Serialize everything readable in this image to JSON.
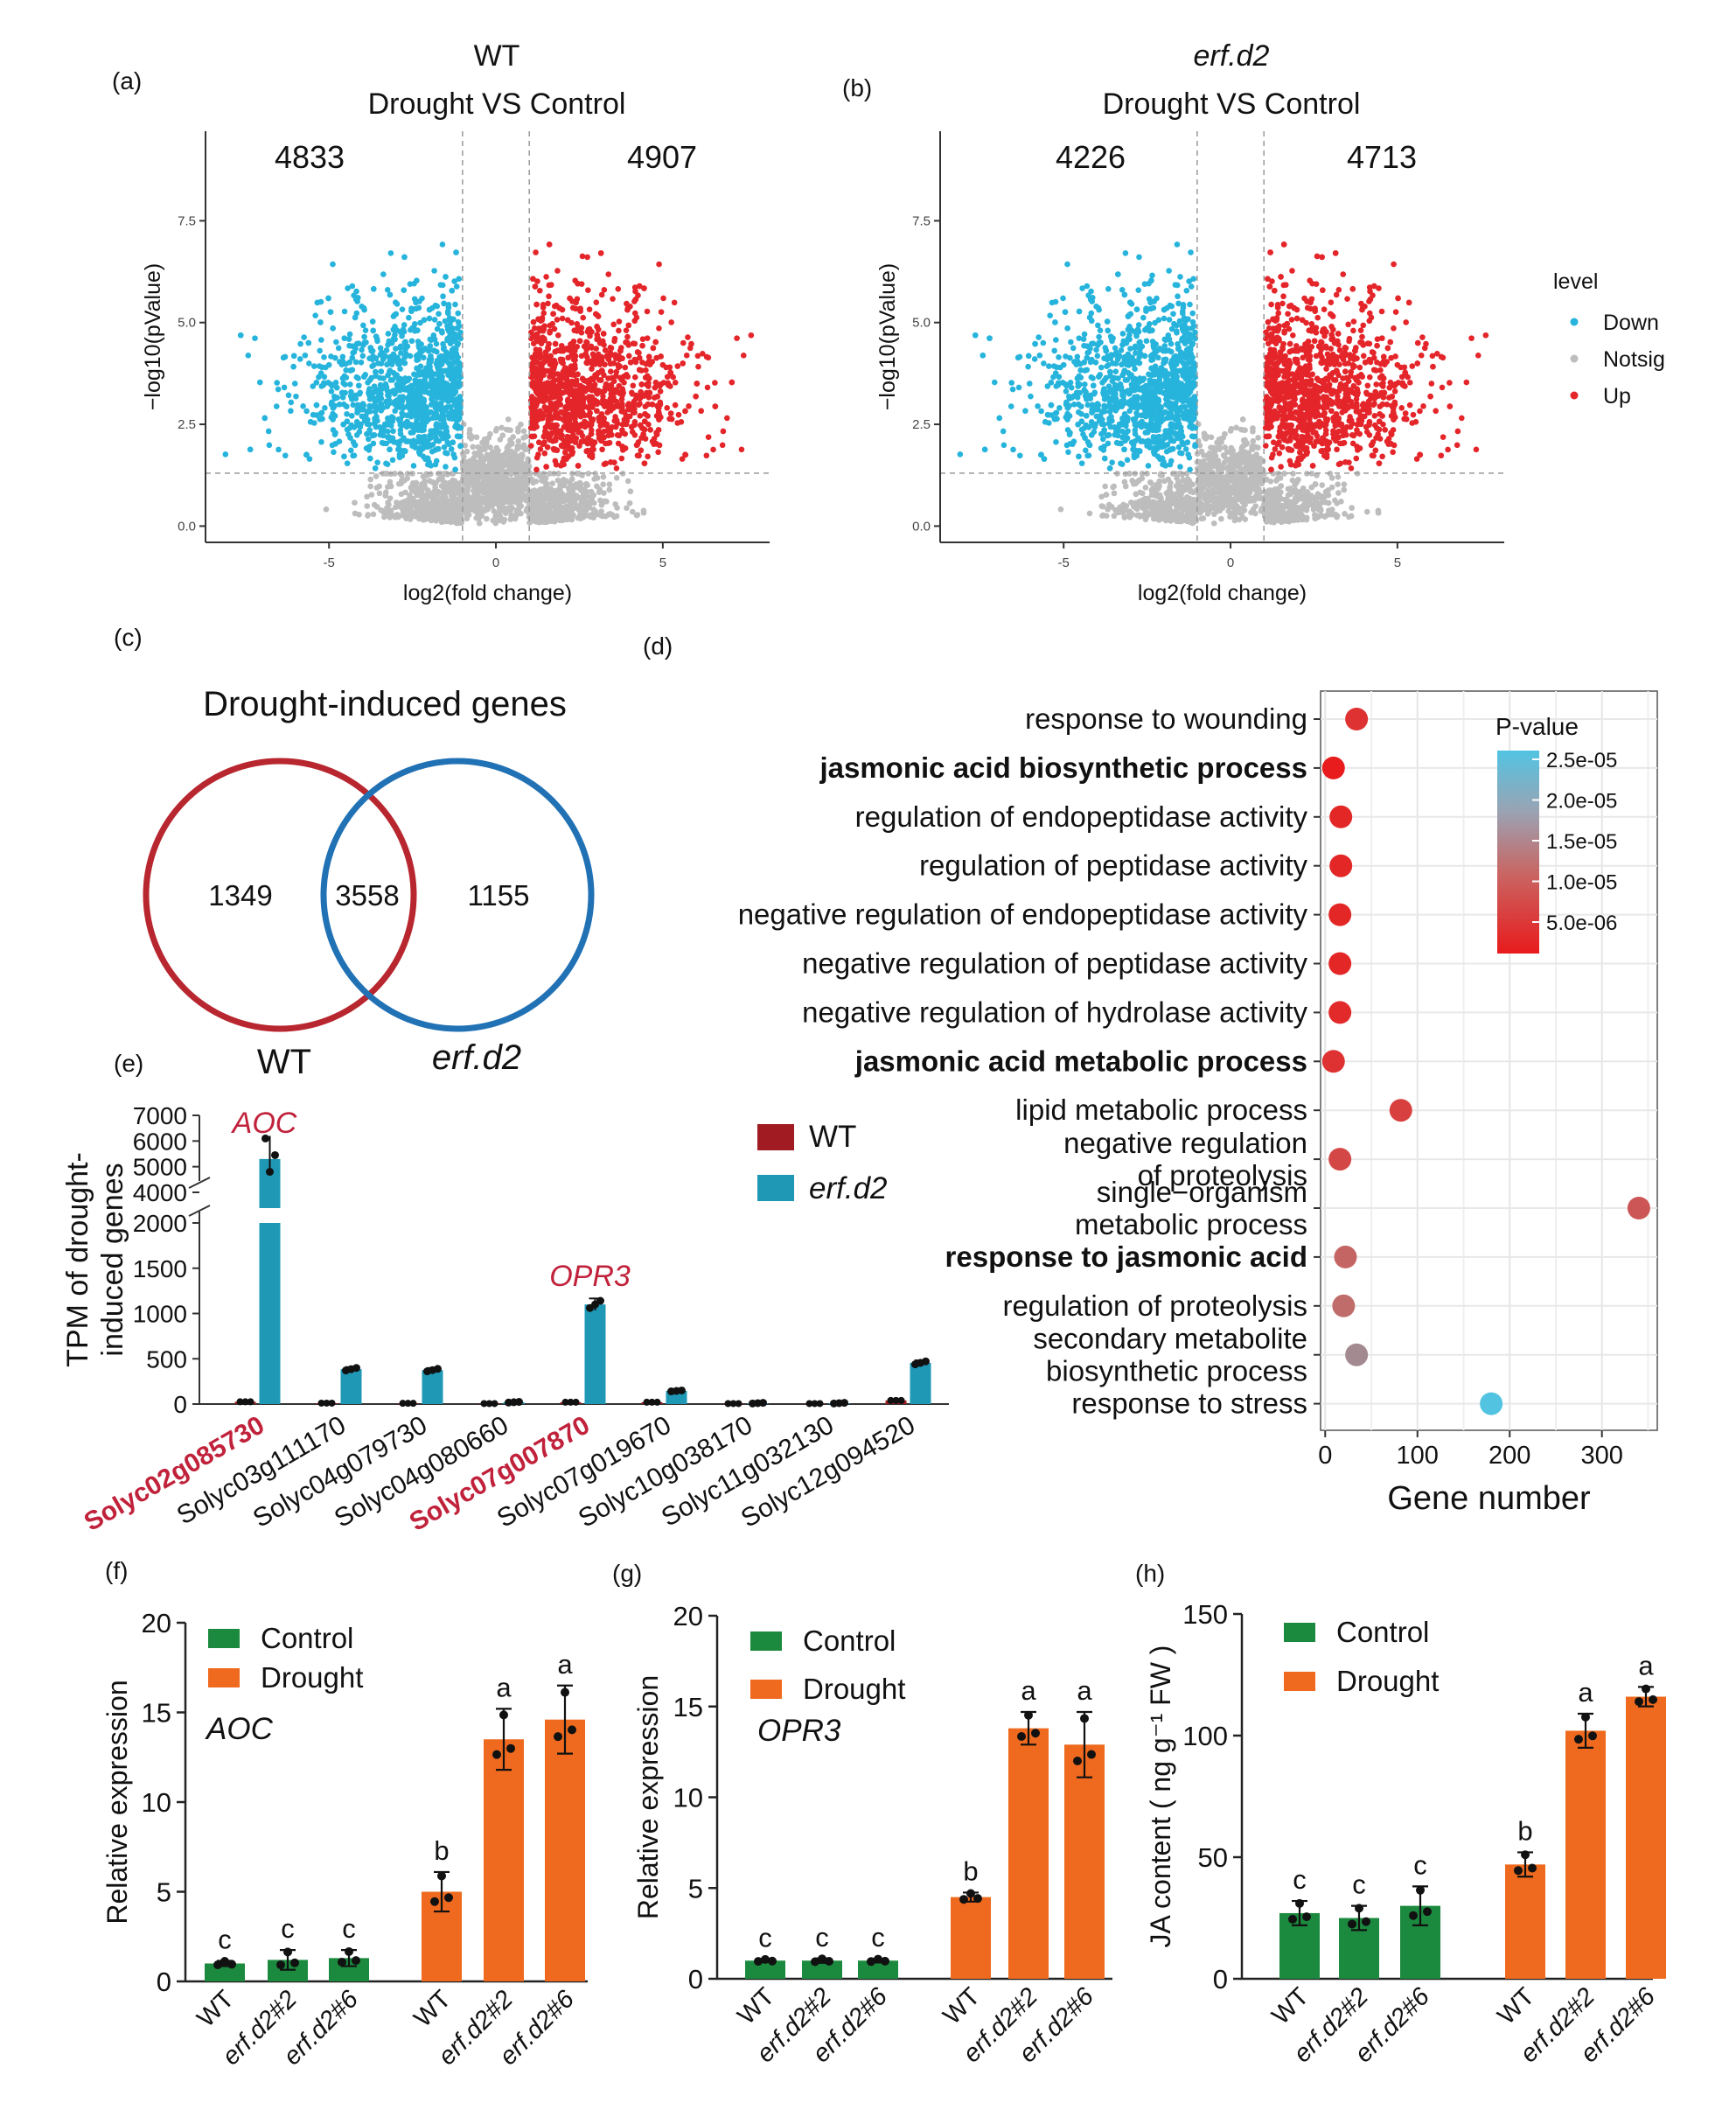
{
  "colors": {
    "down": "#27b4dc",
    "up": "#e4252a",
    "notsig": "#bdbdbd",
    "wt": "#a01c22",
    "erf": "#1e98b5",
    "control": "#1b8a3e",
    "drought": "#ef6a1e",
    "label_red": "#c1223b",
    "venn_wt": "#b8272f",
    "venn_erf": "#2171b5"
  },
  "chart_data": [
    {
      "panel": "(a)",
      "type": "scatter",
      "title_line1": "WT",
      "title_line2": "Drought VS Control",
      "xlabel": "log2(fold change)",
      "ylabel": "−log10(pValue)",
      "xlim": [
        -8.7,
        8.2
      ],
      "ylim": [
        -0.4,
        9.7
      ],
      "xticks": [
        "-5",
        "0",
        "5"
      ],
      "yticks": [
        "0.0",
        "2.5",
        "5.0",
        "7.5"
      ],
      "down_count": "4833",
      "up_count": "4907",
      "fc_cutoff": 1,
      "p_cutoff": 1.3
    },
    {
      "panel": "(b)",
      "type": "scatter",
      "title_line1": "erf.d2",
      "title_line2": "Drought VS Control",
      "xlabel": "log2(fold change)",
      "ylabel": "−log10(pValue)",
      "xlim": [
        -8.7,
        8.2
      ],
      "ylim": [
        -0.4,
        9.7
      ],
      "xticks": [
        "-5",
        "0",
        "5"
      ],
      "yticks": [
        "0.0",
        "2.5",
        "5.0",
        "7.5"
      ],
      "down_count": "4226",
      "up_count": "4713",
      "fc_cutoff": 1,
      "p_cutoff": 1.3,
      "legend_title": "level",
      "legend": [
        "Down",
        "Notsig",
        "Up"
      ]
    },
    {
      "panel": "(c)",
      "type": "venn",
      "title": "Drought-induced genes",
      "left_only": "1349",
      "overlap": "3558",
      "right_only": "1155",
      "left_label": "WT",
      "right_label": "erf.d2"
    },
    {
      "panel": "(d)",
      "type": "scatter",
      "subtype": "dot",
      "xlabel": "Gene number",
      "xticks": [
        "0",
        "100",
        "200",
        "300"
      ],
      "xlim": [
        -5,
        360
      ],
      "colorbar_title": "P-value",
      "colorbar_ticks": [
        "2.5e-05",
        "2.0e-05",
        "1.5e-05",
        "1.0e-05",
        "5.0e-06"
      ],
      "terms": [
        {
          "l1": "response to wounding",
          "l2": "",
          "bold": false,
          "x": 34,
          "p": 3e-06
        },
        {
          "l1": "jasmonic acid biosynthetic process",
          "l2": "",
          "bold": true,
          "x": 9,
          "p": 1e-07
        },
        {
          "l1": "regulation of endopeptidase activity",
          "l2": "",
          "bold": false,
          "x": 17,
          "p": 1.5e-06
        },
        {
          "l1": "regulation of peptidase activity",
          "l2": "",
          "bold": false,
          "x": 17,
          "p": 1.5e-06
        },
        {
          "l1": "negative regulation of endopeptidase activity",
          "l2": "",
          "bold": false,
          "x": 16,
          "p": 1.5e-06
        },
        {
          "l1": "negative regulation of peptidase activity",
          "l2": "",
          "bold": false,
          "x": 16,
          "p": 1.5e-06
        },
        {
          "l1": "negative regulation of hydrolase activity",
          "l2": "",
          "bold": false,
          "x": 16,
          "p": 2e-06
        },
        {
          "l1": "jasmonic acid metabolic process",
          "l2": "",
          "bold": true,
          "x": 9,
          "p": 3e-06
        },
        {
          "l1": "lipid metabolic process",
          "l2": "",
          "bold": false,
          "x": 82,
          "p": 5e-06
        },
        {
          "l1": "negative regulation",
          "l2": "of proteolysis",
          "bold": false,
          "x": 16,
          "p": 6e-06
        },
        {
          "l1": "single−organism",
          "l2": "metabolic process",
          "bold": false,
          "x": 340,
          "p": 8e-06
        },
        {
          "l1": "response to jasmonic acid",
          "l2": "",
          "bold": true,
          "x": 22,
          "p": 1e-05
        },
        {
          "l1": "regulation of proteolysis",
          "l2": "",
          "bold": false,
          "x": 20,
          "p": 1.1e-05
        },
        {
          "l1": "secondary metabolite",
          "l2": "biosynthetic process",
          "bold": false,
          "x": 34,
          "p": 1.6e-05
        },
        {
          "l1": "response to stress",
          "l2": "",
          "bold": false,
          "x": 180,
          "p": 2.6e-05
        }
      ]
    },
    {
      "panel": "(e)",
      "type": "bar",
      "ylabel_line1": "TPM of drought-",
      "ylabel_line2": "induced genes",
      "yticks_low": [
        "0",
        "500",
        "1000",
        "1500",
        "2000"
      ],
      "yticks_high": [
        "4000",
        "5000",
        "6000",
        "7000"
      ],
      "legend": [
        "WT",
        "erf.d2"
      ],
      "genes": [
        "Solyc02g085730",
        "Solyc03g111170",
        "Solyc04g079730",
        "Solyc04g080660",
        "Solyc07g007870",
        "Solyc07g019670",
        "Solyc10g038170",
        "Solyc11g032130",
        "Solyc12g094520"
      ],
      "highlight": [
        0,
        4
      ],
      "wt": [
        25,
        10,
        8,
        5,
        20,
        20,
        5,
        5,
        40
      ],
      "erf": [
        5300,
        385,
        375,
        20,
        1100,
        145,
        10,
        10,
        455
      ],
      "annotations": [
        {
          "gene_index": 0,
          "text": "AOC"
        },
        {
          "gene_index": 4,
          "text": "OPR3"
        }
      ]
    },
    {
      "panel": "(f)",
      "type": "bar",
      "gene": "AOC",
      "ylabel": "Relative expression",
      "ylim": [
        0,
        20
      ],
      "yticks": [
        "0",
        "5",
        "10",
        "15",
        "20"
      ],
      "legend": [
        "Control",
        "Drought"
      ],
      "categories": [
        "WT",
        "erf.d2#2",
        "erf.d2#6",
        "WT",
        "erf.d2#2",
        "erf.d2#6"
      ],
      "values": [
        1.0,
        1.2,
        1.3,
        5.0,
        13.5,
        14.6
      ],
      "errors": [
        0.15,
        0.55,
        0.45,
        1.1,
        1.7,
        1.9
      ],
      "letters": [
        "c",
        "c",
        "c",
        "b",
        "a",
        "a"
      ]
    },
    {
      "panel": "(g)",
      "type": "bar",
      "gene": "OPR3",
      "ylabel": "Relative expression",
      "ylim": [
        0,
        20
      ],
      "yticks": [
        "0",
        "5",
        "10",
        "15",
        "20"
      ],
      "legend": [
        "Control",
        "Drought"
      ],
      "categories": [
        "WT",
        "erf.d2#2",
        "erf.d2#6",
        "WT",
        "erf.d2#2",
        "erf.d2#6"
      ],
      "values": [
        1.0,
        1.0,
        1.0,
        4.5,
        13.8,
        12.9
      ],
      "errors": [
        0.08,
        0.12,
        0.1,
        0.25,
        0.9,
        1.8
      ],
      "letters": [
        "c",
        "c",
        "c",
        "b",
        "a",
        "a"
      ]
    },
    {
      "panel": "(h)",
      "type": "bar",
      "gene": "",
      "ylabel": "JA content ( ng g⁻¹ FW )",
      "ylim": [
        0,
        150
      ],
      "yticks": [
        "0",
        "50",
        "100",
        "150"
      ],
      "legend": [
        "Control",
        "Drought"
      ],
      "categories": [
        "WT",
        "erf.d2#2",
        "erf.d2#6",
        "WT",
        "erf.d2#2",
        "erf.d2#6"
      ],
      "values": [
        27,
        25,
        30,
        47,
        102,
        116
      ],
      "errors": [
        5,
        5,
        8,
        5,
        7,
        4
      ],
      "letters": [
        "c",
        "c",
        "c",
        "b",
        "a",
        "a"
      ]
    }
  ]
}
